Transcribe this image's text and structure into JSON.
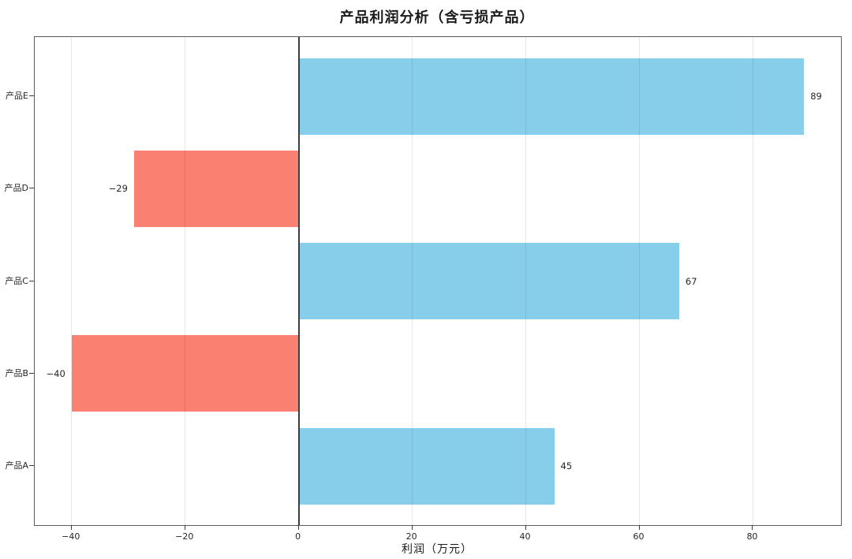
{
  "chart_data": {
    "type": "bar",
    "orientation": "horizontal",
    "title": "产品利润分析（含亏损产品）",
    "xlabel": "利润（万元）",
    "ylabel": "",
    "categories": [
      "产品A",
      "产品B",
      "产品C",
      "产品D",
      "产品E"
    ],
    "values": [
      45,
      -40,
      67,
      -29,
      89
    ],
    "value_labels": [
      "45",
      "−40",
      "67",
      "−29",
      "89"
    ],
    "x_ticks": [
      -40,
      -20,
      0,
      20,
      40,
      60,
      80
    ],
    "x_tick_labels": [
      "−40",
      "−20",
      "0",
      "20",
      "40",
      "60",
      "80"
    ],
    "xlim": [
      -46.5,
      95.5
    ],
    "grid": "vertical-light",
    "zero_line": true,
    "legend": "none",
    "colors": {
      "positive_bar": "#87CEEB",
      "negative_bar": "#FA8072",
      "zero_line": "#3d3d3d",
      "grid": "rgba(0,0,0,0.09)",
      "spine": "#5c5c5c",
      "text": "#262626"
    }
  }
}
